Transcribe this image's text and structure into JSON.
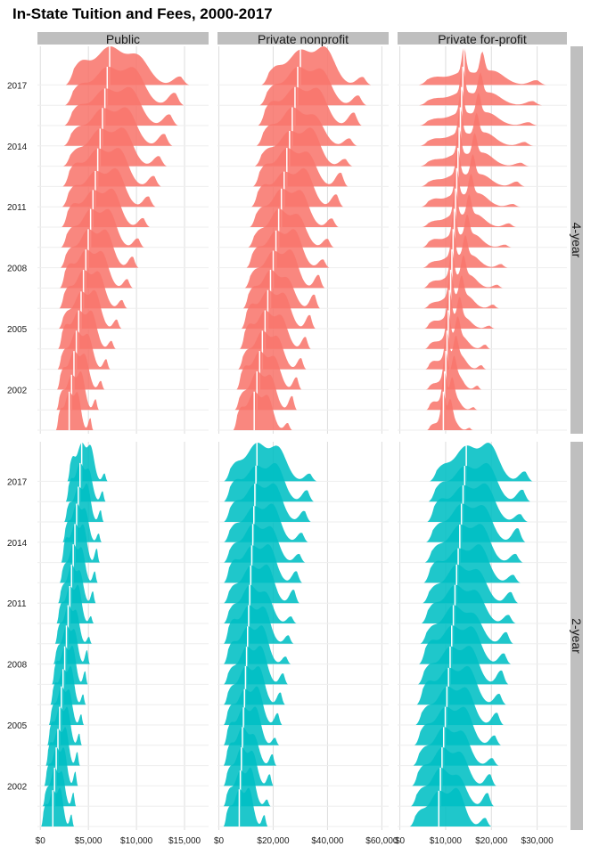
{
  "chart_data": {
    "type": "ridgeline",
    "title": "In-State Tuition and Fees, 2000-2017",
    "xlabel": "",
    "ylabel": "",
    "grid": true,
    "legend": "none",
    "years": [
      2000,
      2001,
      2002,
      2003,
      2004,
      2005,
      2006,
      2007,
      2008,
      2009,
      2010,
      2011,
      2012,
      2013,
      2014,
      2015,
      2016,
      2017
    ],
    "year_tick_labels": [
      "2002",
      "2005",
      "2008",
      "2011",
      "2014",
      "2017"
    ],
    "column_facets": [
      "Public",
      "Private nonprofit",
      "Private for-profit"
    ],
    "row_facets": [
      "4-year",
      "2-year"
    ],
    "row_colors": {
      "4-year": "#f8766d",
      "2-year": "#00bfc4"
    },
    "panel_axes": [
      {
        "facet": "Public",
        "xlim": [
          -300,
          17500
        ],
        "ticks": [
          0,
          5000,
          10000,
          15000
        ],
        "tick_labels": [
          "$0",
          "$5,000",
          "$10,000",
          "$15,000"
        ]
      },
      {
        "facet": "Private nonprofit",
        "xlim": [
          -500,
          62500
        ],
        "ticks": [
          0,
          20000,
          40000,
          60000
        ],
        "tick_labels": [
          "$0",
          "$20,000",
          "$40,000",
          "$60,000"
        ]
      },
      {
        "facet": "Private for-profit",
        "xlim": [
          -500,
          36500
        ],
        "ticks": [
          0,
          10000,
          20000,
          30000
        ],
        "tick_labels": [
          "$0",
          "$10,000",
          "$20,000",
          "$30,000"
        ]
      }
    ],
    "distributions_note_values": "approximate density peaks (in $) per year, 2000 to 2017",
    "series": [
      {
        "name": "4-year Public",
        "peak_2000": 3000,
        "peak_2017": 7200,
        "max_2000": 5500,
        "max_2017": 15500
      },
      {
        "name": "4-year Private nonprofit",
        "peak_2000": 13000,
        "peak_2017": 30000,
        "max_2000": 27000,
        "max_2017": 56000
      },
      {
        "name": "4-year Private for-profit",
        "peak_2000": 9500,
        "peak_2017": 14000,
        "max_2000": 16000,
        "max_2017": 32000
      },
      {
        "name": "2-year Public",
        "peak_2000": 1300,
        "peak_2017": 4300,
        "max_2000": 3500,
        "max_2017": 7000
      },
      {
        "name": "2-year Private nonprofit",
        "peak_2000": 7500,
        "peak_2017": 14000,
        "max_2000": 18000,
        "max_2017": 36000
      },
      {
        "name": "2-year Private for-profit",
        "peak_2000": 8500,
        "peak_2017": 14500,
        "max_2000": 20000,
        "max_2017": 29000
      }
    ]
  }
}
